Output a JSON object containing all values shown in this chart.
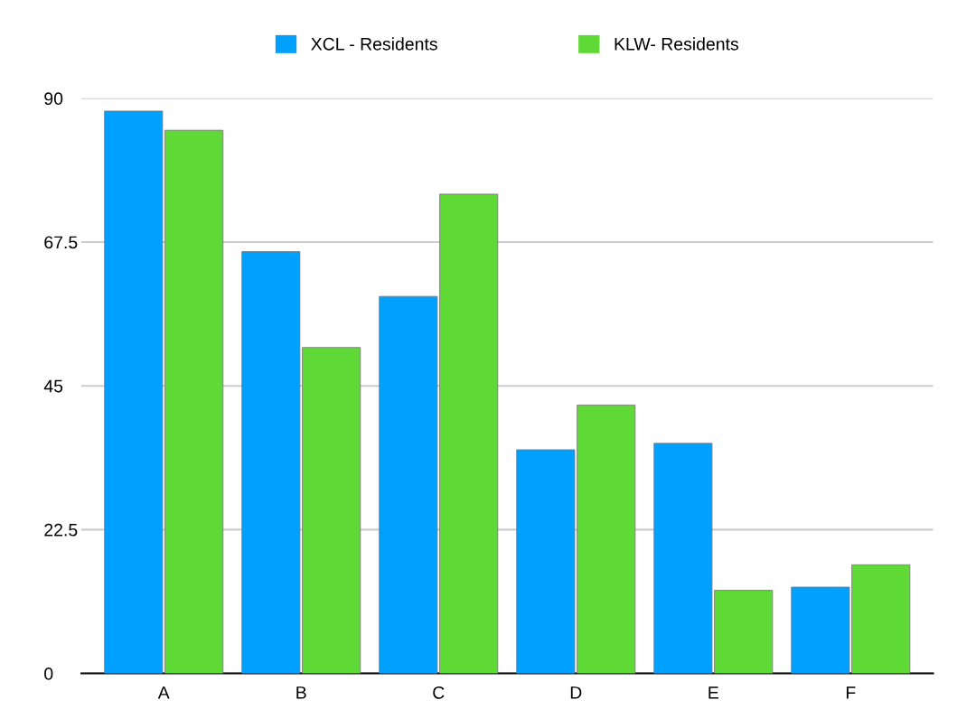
{
  "chart_data": {
    "type": "bar",
    "categories": [
      "A",
      "B",
      "C",
      "D",
      "E",
      "F"
    ],
    "series": [
      {
        "name": "XCL - Residents",
        "color": "#00a0ff",
        "values": [
          88,
          66,
          59,
          35,
          36,
          13.5
        ]
      },
      {
        "name": "KLW- Residents",
        "color": "#5fd936",
        "values": [
          85,
          51,
          75,
          42,
          13,
          17
        ]
      }
    ],
    "ylim": [
      0,
      90
    ],
    "yticks": [
      0,
      22.5,
      45,
      67.5,
      90
    ],
    "grid": "y",
    "legend": "top"
  }
}
